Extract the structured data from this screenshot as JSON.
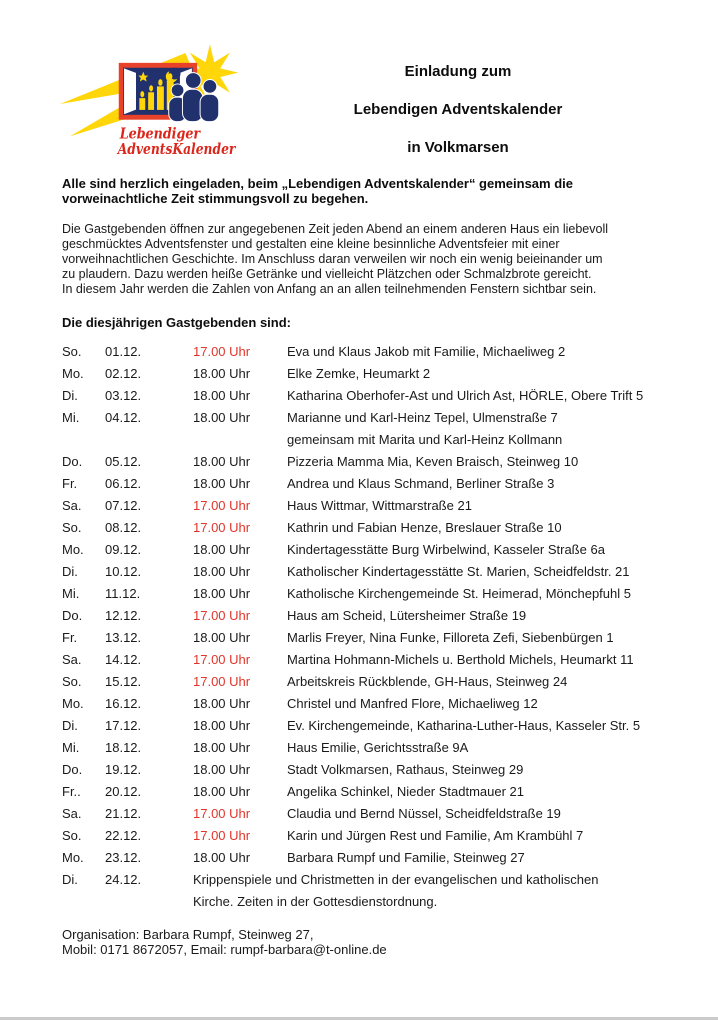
{
  "logo": {
    "line1": "Lebendiger",
    "line2": "AdventsKalender",
    "icon": "comet-window-candles-logo",
    "colors": {
      "yellow": "#FFD60A",
      "frame_red": "#E8432A",
      "navy": "#20316E",
      "text_red": "#DB261B"
    }
  },
  "title": {
    "lines": [
      "Einladung zum",
      "Lebendigen Adventskalender",
      "in Volkmarsen"
    ]
  },
  "intro_bold_lines": [
    "Alle sind herzlich eingeladen, beim „Lebendigen Adventskalender“ gemeinsam die",
    "vorweinachtliche Zeit stimmungsvoll zu begehen."
  ],
  "intro_lines": [
    "Die Gastgebenden öffnen zur angegebenen Zeit jeden Abend an einem anderen Haus ein liebevoll",
    "geschmücktes Adventsfenster und gestalten eine kleine besinnliche Adventsfeier mit einer",
    "vorweihnachtlichen Geschichte. Im Anschluss daran verweilen wir noch ein wenig beieinander um",
    "zu plaudern. Dazu werden heiße Getränke und vielleicht Plätzchen oder Schmalzbrote gereicht.",
    "In diesem Jahr werden die Zahlen von Anfang an an allen teilnehmenden Fenstern sichtbar sein."
  ],
  "hosts_heading": "Die diesjährigen Gastgebenden sind:",
  "schedule": {
    "time_red_hex": "#e0352a",
    "rows": [
      {
        "day": "So.",
        "date": "01.12.",
        "time": "17.00 Uhr",
        "red": true,
        "name_lines": [
          "Eva und Klaus Jakob mit Familie, Michaeliweg 2"
        ]
      },
      {
        "day": "Mo.",
        "date": "02.12.",
        "time": "18.00 Uhr",
        "red": false,
        "name_lines": [
          "Elke Zemke, Heumarkt 2"
        ]
      },
      {
        "day": "Di.",
        "date": "03.12.",
        "time": "18.00 Uhr",
        "red": false,
        "name_lines": [
          "Katharina Oberhofer-Ast und Ulrich Ast, HÖRLE, Obere Trift 5"
        ]
      },
      {
        "day": "Mi.",
        "date": "04.12.",
        "time": "18.00 Uhr",
        "red": false,
        "name_lines": [
          "Marianne und Karl-Heinz Tepel, Ulmenstraße 7",
          "gemeinsam mit Marita und Karl-Heinz Kollmann"
        ]
      },
      {
        "day": "Do.",
        "date": "05.12.",
        "time": "18.00 Uhr",
        "red": false,
        "name_lines": [
          "Pizzeria Mamma Mia, Keven Braisch, Steinweg 10"
        ]
      },
      {
        "day": "Fr.",
        "date": "06.12.",
        "time": "18.00 Uhr",
        "red": false,
        "name_lines": [
          "Andrea und Klaus Schmand, Berliner Straße 3"
        ]
      },
      {
        "day": "Sa.",
        "date": "07.12.",
        "time": "17.00 Uhr",
        "red": true,
        "name_lines": [
          "Haus Wittmar, Wittmarstraße 21"
        ]
      },
      {
        "day": "So.",
        "date": "08.12.",
        "time": "17.00 Uhr",
        "red": true,
        "name_lines": [
          "Kathrin und Fabian Henze, Breslauer Straße 10"
        ]
      },
      {
        "day": "Mo.",
        "date": "09.12.",
        "time": "18.00 Uhr",
        "red": false,
        "name_lines": [
          "Kindertagesstätte Burg Wirbelwind, Kasseler Straße 6a"
        ]
      },
      {
        "day": "Di.",
        "date": "10.12.",
        "time": "18.00 Uhr",
        "red": false,
        "name_lines": [
          "Katholischer Kindertagesstätte St. Marien, Scheidfeldstr. 21"
        ]
      },
      {
        "day": "Mi.",
        "date": "11.12.",
        "time": "18.00 Uhr",
        "red": false,
        "name_lines": [
          "Katholische Kirchengemeinde St. Heimerad, Mönchepfuhl 5"
        ]
      },
      {
        "day": "Do.",
        "date": "12.12.",
        "time": "17.00 Uhr",
        "red": true,
        "name_lines": [
          "Haus am Scheid, Lütersheimer Straße 19"
        ]
      },
      {
        "day": "Fr.",
        "date": "13.12.",
        "time": "18.00 Uhr",
        "red": false,
        "name_lines": [
          "Marlis Freyer, Nina Funke, Filloreta Zefi, Siebenbürgen 1"
        ]
      },
      {
        "day": "Sa.",
        "date": "14.12.",
        "time": "17.00 Uhr",
        "red": true,
        "name_lines": [
          "Martina Hohmann-Michels u. Berthold Michels, Heumarkt 11"
        ]
      },
      {
        "day": "So.",
        "date": "15.12.",
        "time": "17.00 Uhr",
        "red": true,
        "name_lines": [
          "Arbeitskreis Rückblende, GH-Haus, Steinweg 24"
        ]
      },
      {
        "day": "Mo.",
        "date": "16.12.",
        "time": "18.00 Uhr",
        "red": false,
        "name_lines": [
          "Christel und Manfred Flore, Michaeliweg 12"
        ]
      },
      {
        "day": "Di.",
        "date": "17.12.",
        "time": "18.00 Uhr",
        "red": false,
        "name_lines": [
          "Ev. Kirchengemeinde, Katharina-Luther-Haus, Kasseler Str. 5"
        ]
      },
      {
        "day": "Mi.",
        "date": "18.12.",
        "time": "18.00 Uhr",
        "red": false,
        "name_lines": [
          "Haus Emilie, Gerichtsstraße 9A"
        ]
      },
      {
        "day": "Do.",
        "date": "19.12.",
        "time": "18.00 Uhr",
        "red": false,
        "name_lines": [
          "Stadt Volkmarsen, Rathaus, Steinweg 29"
        ]
      },
      {
        "day": "Fr..",
        "date": "20.12.",
        "time": "18.00 Uhr",
        "red": false,
        "name_lines": [
          "Angelika Schinkel, Nieder Stadtmauer 21"
        ]
      },
      {
        "day": "Sa.",
        "date": "21.12.",
        "time": "17.00 Uhr",
        "red": true,
        "name_lines": [
          "Claudia und Bernd Nüssel, Scheidfeldstraße 19"
        ]
      },
      {
        "day": "So.",
        "date": "22.12.",
        "time": "17.00 Uhr",
        "red": true,
        "name_lines": [
          "Karin und Jürgen Rest und Familie, Am Krambühl 7"
        ]
      },
      {
        "day": "Mo.",
        "date": "23.12.",
        "time": "18.00 Uhr",
        "red": false,
        "name_lines": [
          "Barbara Rumpf und Familie, Steinweg 27"
        ]
      },
      {
        "day": "Di.",
        "date": "24.12.",
        "time": "",
        "red": false,
        "wide": true,
        "name_lines": [
          "Krippenspiele und Christmetten in der evangelischen und katholischen",
          "Kirche. Zeiten in der Gottesdienstordnung."
        ]
      }
    ]
  },
  "footer_lines": [
    "Organisation: Barbara Rumpf, Steinweg 27,",
    "Mobil: 0171 8672057, Email: rumpf-barbara@t-online.de"
  ]
}
